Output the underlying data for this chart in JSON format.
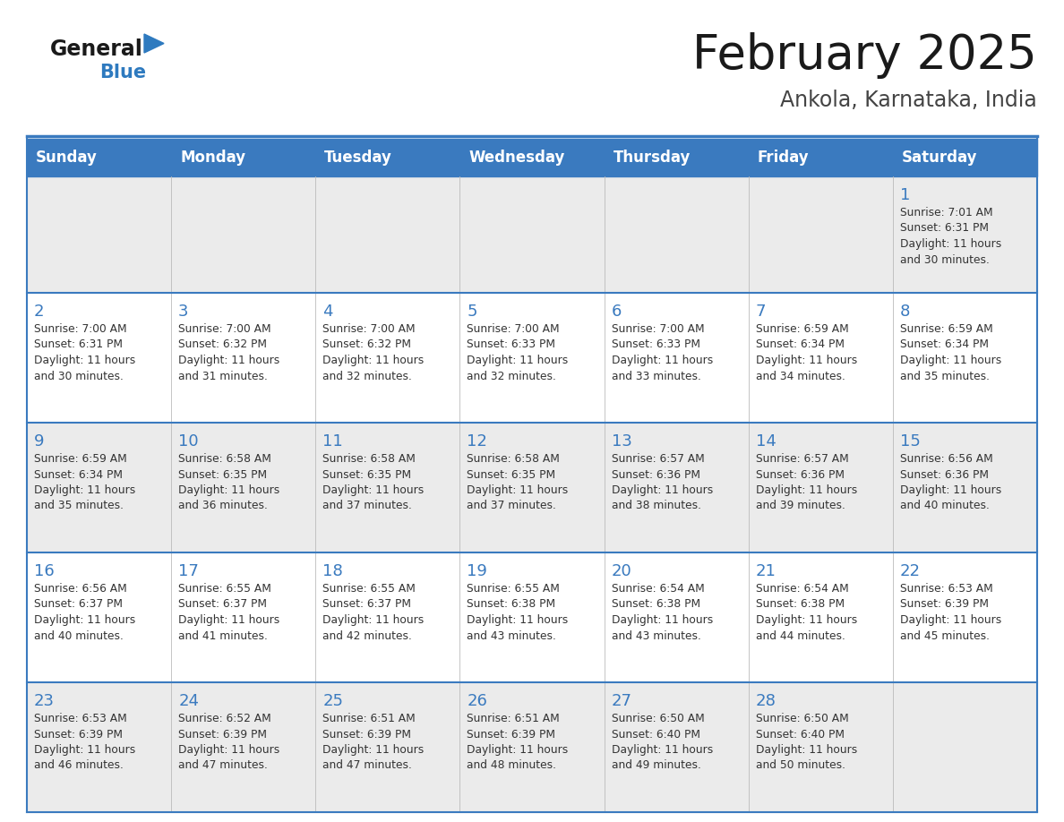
{
  "title": "February 2025",
  "subtitle": "Ankola, Karnataka, India",
  "days_of_week": [
    "Sunday",
    "Monday",
    "Tuesday",
    "Wednesday",
    "Thursday",
    "Friday",
    "Saturday"
  ],
  "header_bg": "#3a7abf",
  "header_text_color": "#ffffff",
  "row_bg_light": "#ebebeb",
  "row_bg_white": "#ffffff",
  "cell_border_color": "#3a7abf",
  "title_color": "#1a1a1a",
  "subtitle_color": "#444444",
  "day_num_color": "#3a7abf",
  "info_color": "#333333",
  "calendar": [
    [
      null,
      null,
      null,
      null,
      null,
      null,
      {
        "day": "1",
        "sunrise": "7:01 AM",
        "sunset": "6:31 PM",
        "daylight_min": "30"
      }
    ],
    [
      {
        "day": "2",
        "sunrise": "7:00 AM",
        "sunset": "6:31 PM",
        "daylight_min": "30"
      },
      {
        "day": "3",
        "sunrise": "7:00 AM",
        "sunset": "6:32 PM",
        "daylight_min": "31"
      },
      {
        "day": "4",
        "sunrise": "7:00 AM",
        "sunset": "6:32 PM",
        "daylight_min": "32"
      },
      {
        "day": "5",
        "sunrise": "7:00 AM",
        "sunset": "6:33 PM",
        "daylight_min": "32"
      },
      {
        "day": "6",
        "sunrise": "7:00 AM",
        "sunset": "6:33 PM",
        "daylight_min": "33"
      },
      {
        "day": "7",
        "sunrise": "6:59 AM",
        "sunset": "6:34 PM",
        "daylight_min": "34"
      },
      {
        "day": "8",
        "sunrise": "6:59 AM",
        "sunset": "6:34 PM",
        "daylight_min": "35"
      }
    ],
    [
      {
        "day": "9",
        "sunrise": "6:59 AM",
        "sunset": "6:34 PM",
        "daylight_min": "35"
      },
      {
        "day": "10",
        "sunrise": "6:58 AM",
        "sunset": "6:35 PM",
        "daylight_min": "36"
      },
      {
        "day": "11",
        "sunrise": "6:58 AM",
        "sunset": "6:35 PM",
        "daylight_min": "37"
      },
      {
        "day": "12",
        "sunrise": "6:58 AM",
        "sunset": "6:35 PM",
        "daylight_min": "37"
      },
      {
        "day": "13",
        "sunrise": "6:57 AM",
        "sunset": "6:36 PM",
        "daylight_min": "38"
      },
      {
        "day": "14",
        "sunrise": "6:57 AM",
        "sunset": "6:36 PM",
        "daylight_min": "39"
      },
      {
        "day": "15",
        "sunrise": "6:56 AM",
        "sunset": "6:36 PM",
        "daylight_min": "40"
      }
    ],
    [
      {
        "day": "16",
        "sunrise": "6:56 AM",
        "sunset": "6:37 PM",
        "daylight_min": "40"
      },
      {
        "day": "17",
        "sunrise": "6:55 AM",
        "sunset": "6:37 PM",
        "daylight_min": "41"
      },
      {
        "day": "18",
        "sunrise": "6:55 AM",
        "sunset": "6:37 PM",
        "daylight_min": "42"
      },
      {
        "day": "19",
        "sunrise": "6:55 AM",
        "sunset": "6:38 PM",
        "daylight_min": "43"
      },
      {
        "day": "20",
        "sunrise": "6:54 AM",
        "sunset": "6:38 PM",
        "daylight_min": "43"
      },
      {
        "day": "21",
        "sunrise": "6:54 AM",
        "sunset": "6:38 PM",
        "daylight_min": "44"
      },
      {
        "day": "22",
        "sunrise": "6:53 AM",
        "sunset": "6:39 PM",
        "daylight_min": "45"
      }
    ],
    [
      {
        "day": "23",
        "sunrise": "6:53 AM",
        "sunset": "6:39 PM",
        "daylight_min": "46"
      },
      {
        "day": "24",
        "sunrise": "6:52 AM",
        "sunset": "6:39 PM",
        "daylight_min": "47"
      },
      {
        "day": "25",
        "sunrise": "6:51 AM",
        "sunset": "6:39 PM",
        "daylight_min": "47"
      },
      {
        "day": "26",
        "sunrise": "6:51 AM",
        "sunset": "6:39 PM",
        "daylight_min": "48"
      },
      {
        "day": "27",
        "sunrise": "6:50 AM",
        "sunset": "6:40 PM",
        "daylight_min": "49"
      },
      {
        "day": "28",
        "sunrise": "6:50 AM",
        "sunset": "6:40 PM",
        "daylight_min": "50"
      },
      null
    ]
  ]
}
